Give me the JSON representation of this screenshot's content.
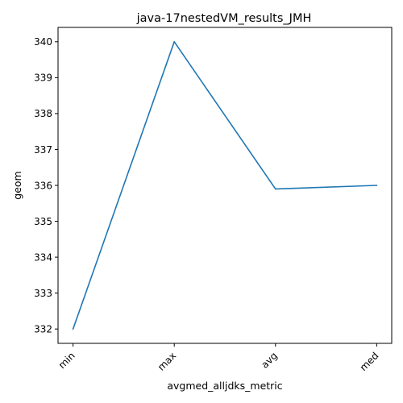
{
  "chart_data": {
    "type": "line",
    "title": "java-17nestedVM_results_JMH",
    "xlabel": "avgmed_alljdks_metric",
    "ylabel": "geom",
    "categories": [
      "min",
      "max",
      "avg",
      "med"
    ],
    "series": [
      {
        "values": [
          332.0,
          340.0,
          335.9,
          336.0
        ],
        "color": "#1f77b4"
      }
    ],
    "ylim": [
      331.6,
      340.4
    ],
    "yticks": [
      332,
      333,
      334,
      335,
      336,
      337,
      338,
      339,
      340
    ],
    "grid": false,
    "legend": "none"
  }
}
